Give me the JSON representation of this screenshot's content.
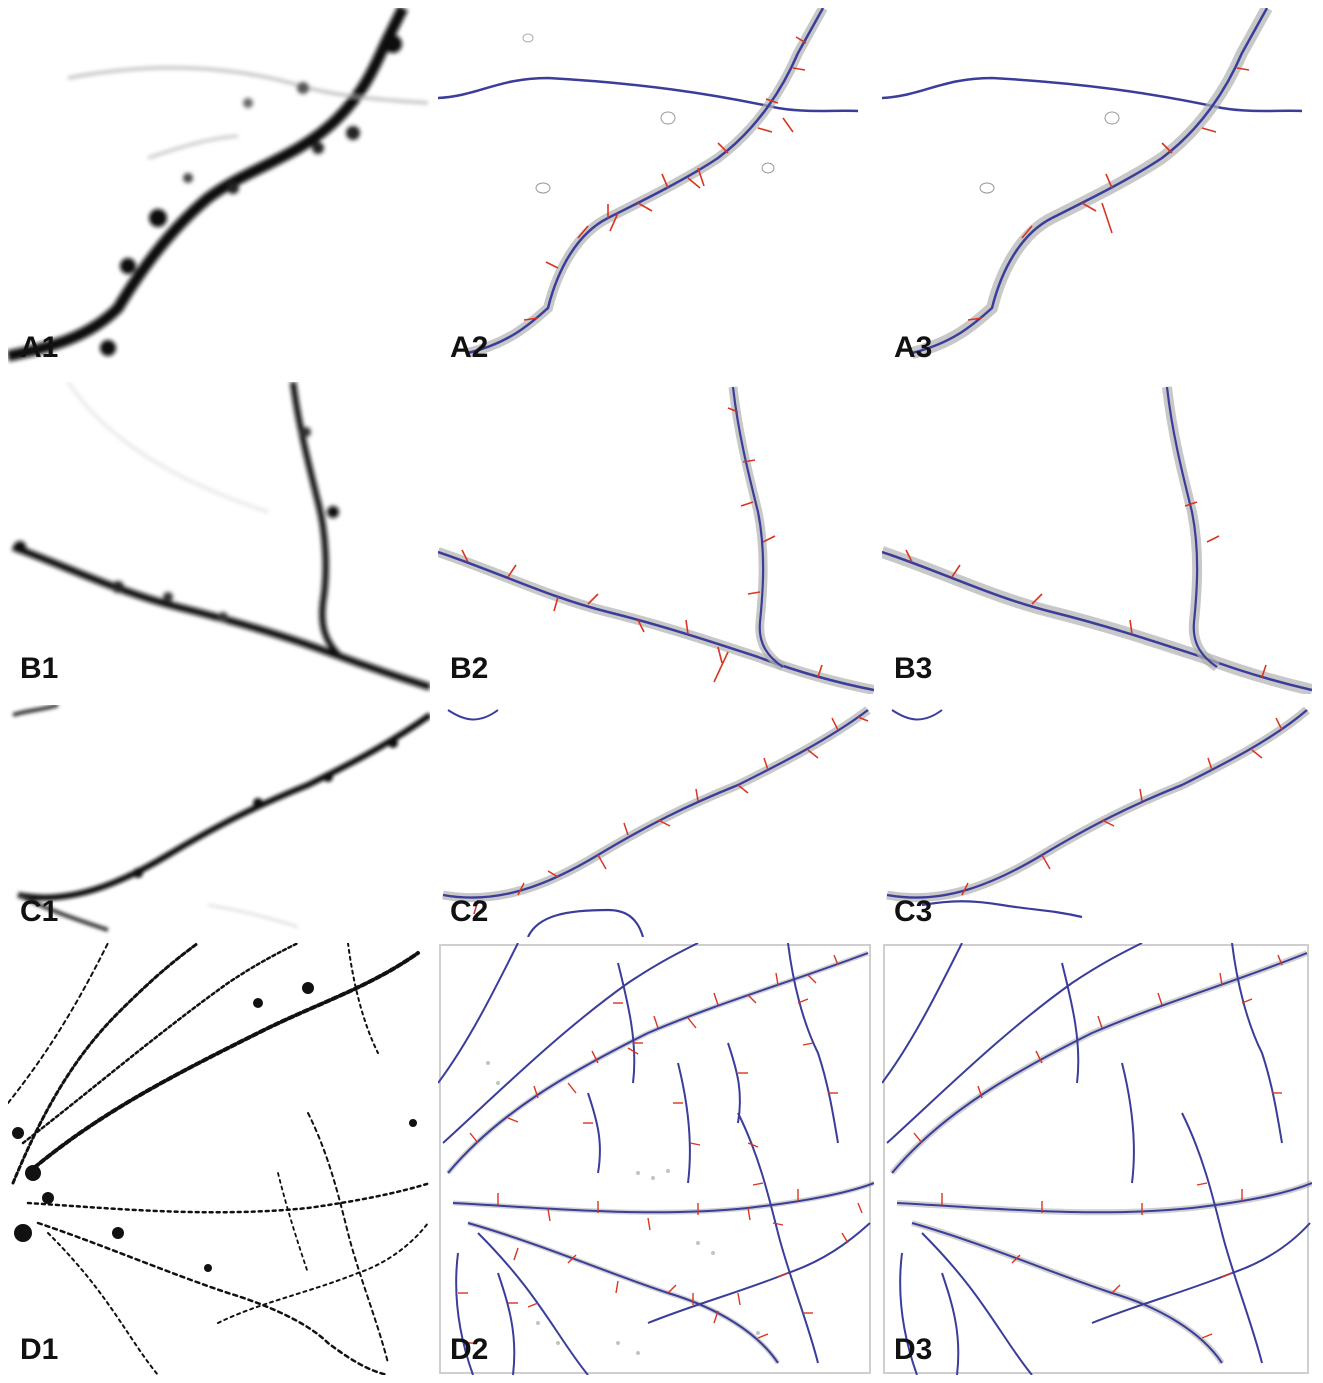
{
  "figure": {
    "rows": [
      {
        "id": "A",
        "labels": [
          "A1",
          "A2",
          "A3"
        ]
      },
      {
        "id": "B",
        "labels": [
          "B1",
          "B2",
          "B3"
        ]
      },
      {
        "id": "C",
        "labels": [
          "C1",
          "C2",
          "C3"
        ]
      },
      {
        "id": "D",
        "labels": [
          "D1",
          "D2",
          "D3"
        ]
      }
    ]
  },
  "colors": {
    "raw_signal": "#111111",
    "trace_blue": "#3a3d9a",
    "spine_red": "#d9351f",
    "surface_gray": "#9a9a9a"
  },
  "icons": {
    "raw": "fluorescence-micrograph",
    "reconstruction": "dendrite-trace-overlay"
  }
}
